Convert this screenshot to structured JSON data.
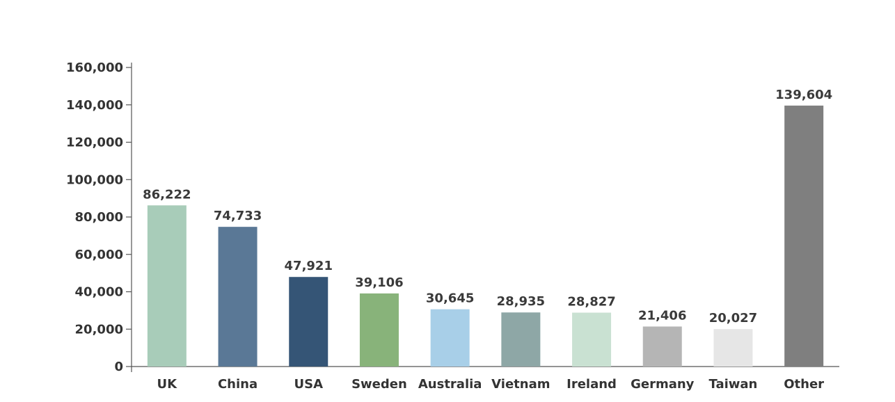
{
  "chart_data": {
    "type": "bar",
    "categories": [
      "UK",
      "China",
      "USA",
      "Sweden",
      "Australia",
      "Vietnam",
      "Ireland",
      "Germany",
      "Taiwan",
      "Other"
    ],
    "values": [
      86222,
      74733,
      47921,
      39106,
      30645,
      28935,
      28827,
      21406,
      20027,
      139604
    ],
    "value_labels": [
      "86,222",
      "74,733",
      "47,921",
      "39,106",
      "30,645",
      "28,935",
      "28,827",
      "21,406",
      "20,027",
      "139,604"
    ],
    "colors": [
      "#a8ccb9",
      "#5a7896",
      "#355576",
      "#88b37a",
      "#a8cfe8",
      "#8ea7a6",
      "#c9e1d2",
      "#b5b5b5",
      "#e6e6e6",
      "#7f7f7f"
    ],
    "ylim": [
      0,
      160000
    ],
    "yticks": [
      0,
      20000,
      40000,
      60000,
      80000,
      100000,
      120000,
      140000,
      160000
    ],
    "ytick_labels": [
      "0",
      "20,000",
      "40,000",
      "60,000",
      "80,000",
      "100,000",
      "120,000",
      "140,000",
      "160,000"
    ],
    "title": "",
    "xlabel": "",
    "ylabel": "",
    "grid": false,
    "legend": "none"
  }
}
